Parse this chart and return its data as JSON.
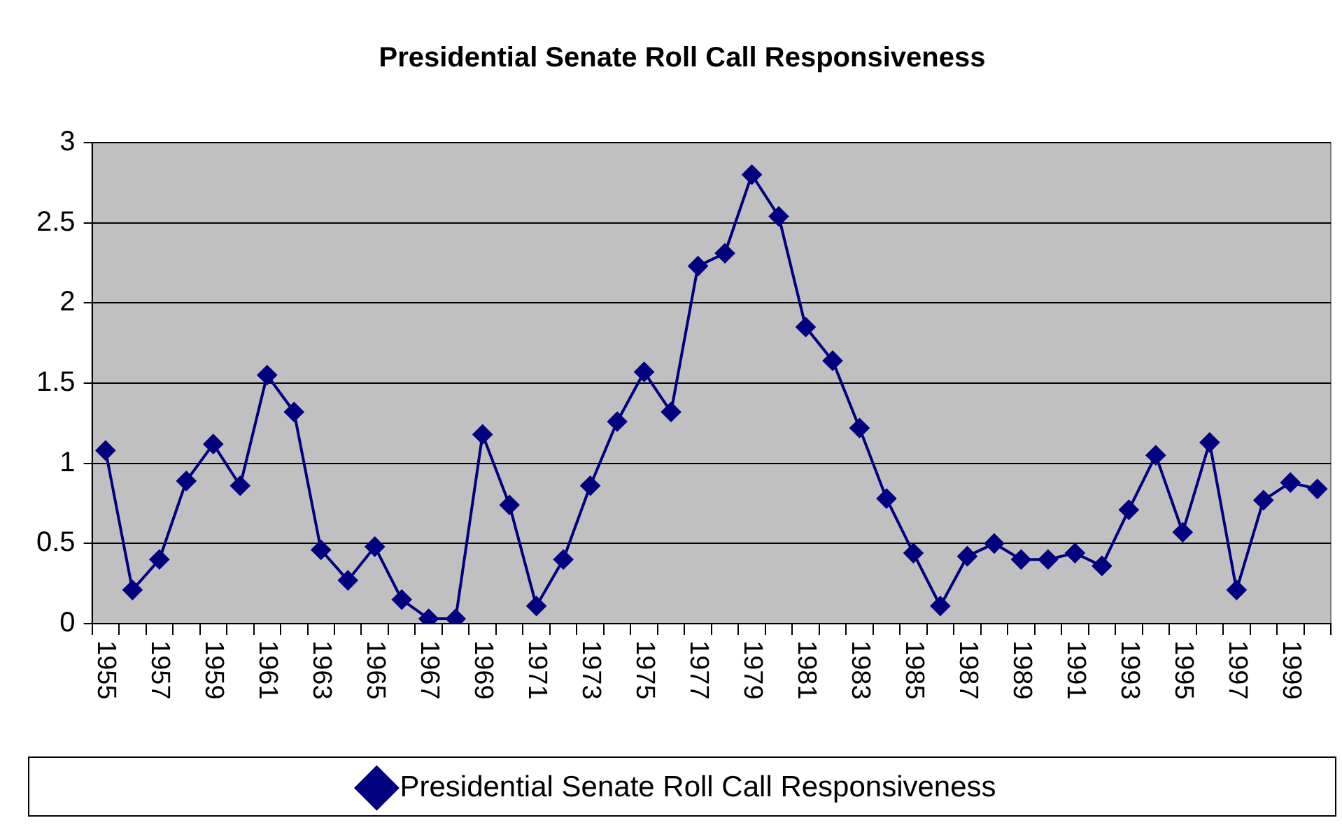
{
  "chart_data": {
    "type": "line",
    "title": "Presidential Senate Roll Call Responsiveness",
    "categories": [
      "1955",
      null,
      "1957",
      null,
      "1959",
      null,
      "1961",
      null,
      "1963",
      null,
      "1965",
      null,
      "1967",
      null,
      "1969",
      null,
      "1971",
      null,
      "1973",
      null,
      "1975",
      null,
      "1977",
      null,
      "1979",
      null,
      "1981",
      null,
      "1983",
      null,
      "1985",
      null,
      "1987",
      null,
      "1989",
      null,
      "1991",
      null,
      "1993",
      null,
      "1995",
      null,
      "1997",
      null,
      "1999",
      null
    ],
    "series": [
      {
        "name": "Presidential Senate Roll Call Responsiveness",
        "color": "#000080",
        "values": [
          1.08,
          0.21,
          0.4,
          0.89,
          1.12,
          0.86,
          1.55,
          1.32,
          0.46,
          0.27,
          0.48,
          0.15,
          0.03,
          0.03,
          1.18,
          0.74,
          0.11,
          0.4,
          0.86,
          1.26,
          1.57,
          1.32,
          2.23,
          2.31,
          2.8,
          2.54,
          1.85,
          1.64,
          1.22,
          0.78,
          0.44,
          0.11,
          0.42,
          0.5,
          0.4,
          0.4,
          0.44,
          0.36,
          0.71,
          1.05,
          0.57,
          1.13,
          0.21,
          0.77,
          0.88,
          0.84
        ]
      }
    ],
    "ylim": [
      0,
      3
    ],
    "yticks": [
      0,
      0.5,
      1,
      1.5,
      2,
      2.5,
      3
    ],
    "grid": "y",
    "legend": "bottom",
    "marker": "diamond"
  }
}
